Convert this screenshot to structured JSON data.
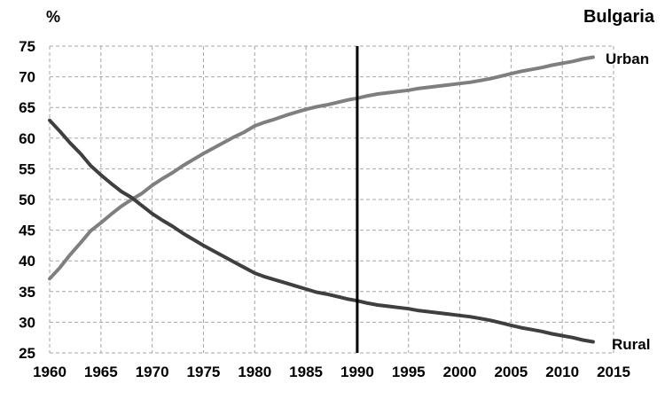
{
  "chart_data": {
    "type": "line",
    "title": "Bulgaria",
    "ylabel": "%",
    "xlabel": "",
    "xlim": [
      1960,
      2015
    ],
    "ylim": [
      25,
      75
    ],
    "x_ticks": [
      1960,
      1965,
      1970,
      1975,
      1980,
      1985,
      1990,
      1995,
      2000,
      2005,
      2010,
      2015
    ],
    "y_ticks": [
      25,
      30,
      35,
      40,
      45,
      50,
      55,
      60,
      65,
      70,
      75
    ],
    "grid": true,
    "reference_line_x": 1990,
    "series": [
      {
        "name": "Urban",
        "color": "#7f7f7f",
        "x": [
          1960,
          1961,
          1962,
          1963,
          1964,
          1965,
          1966,
          1967,
          1968,
          1969,
          1970,
          1971,
          1972,
          1973,
          1974,
          1975,
          1976,
          1977,
          1978,
          1979,
          1980,
          1981,
          1982,
          1983,
          1984,
          1985,
          1986,
          1987,
          1988,
          1989,
          1990,
          1991,
          1992,
          1993,
          1994,
          1995,
          1996,
          1997,
          1998,
          1999,
          2000,
          2001,
          2002,
          2003,
          2004,
          2005,
          2006,
          2007,
          2008,
          2009,
          2010,
          2011,
          2012,
          2013
        ],
        "y": [
          37.1,
          38.9,
          41.0,
          42.9,
          44.9,
          46.2,
          47.6,
          48.9,
          50.0,
          51.0,
          52.3,
          53.4,
          54.4,
          55.5,
          56.5,
          57.5,
          58.4,
          59.3,
          60.2,
          61.0,
          62.0,
          62.6,
          63.1,
          63.7,
          64.2,
          64.7,
          65.1,
          65.4,
          65.8,
          66.2,
          66.5,
          66.9,
          67.2,
          67.4,
          67.6,
          67.8,
          68.1,
          68.3,
          68.5,
          68.7,
          68.9,
          69.1,
          69.4,
          69.7,
          70.1,
          70.5,
          70.9,
          71.2,
          71.5,
          71.9,
          72.2,
          72.5,
          72.9,
          73.2
        ]
      },
      {
        "name": "Rural",
        "color": "#3f3f3f",
        "x": [
          1960,
          1961,
          1962,
          1963,
          1964,
          1965,
          1966,
          1967,
          1968,
          1969,
          1970,
          1971,
          1972,
          1973,
          1974,
          1975,
          1976,
          1977,
          1978,
          1979,
          1980,
          1981,
          1982,
          1983,
          1984,
          1985,
          1986,
          1987,
          1988,
          1989,
          1990,
          1991,
          1992,
          1993,
          1994,
          1995,
          1996,
          1997,
          1998,
          1999,
          2000,
          2001,
          2002,
          2003,
          2004,
          2005,
          2006,
          2007,
          2008,
          2009,
          2010,
          2011,
          2012,
          2013
        ],
        "y": [
          62.9,
          61.1,
          59.2,
          57.5,
          55.5,
          54.0,
          52.6,
          51.3,
          50.3,
          49.0,
          47.7,
          46.6,
          45.6,
          44.5,
          43.5,
          42.5,
          41.6,
          40.7,
          39.8,
          38.9,
          38.0,
          37.4,
          36.9,
          36.4,
          35.9,
          35.4,
          34.9,
          34.6,
          34.2,
          33.8,
          33.5,
          33.1,
          32.8,
          32.6,
          32.4,
          32.2,
          31.9,
          31.7,
          31.5,
          31.3,
          31.1,
          30.9,
          30.6,
          30.3,
          29.9,
          29.5,
          29.1,
          28.8,
          28.5,
          28.1,
          27.8,
          27.5,
          27.1,
          26.8
        ]
      }
    ]
  }
}
